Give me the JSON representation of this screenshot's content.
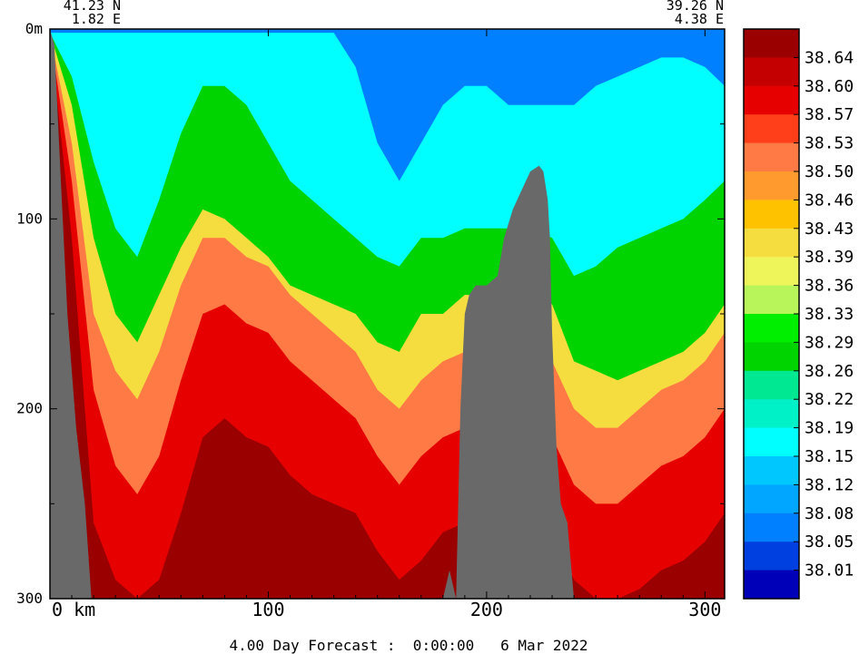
{
  "chart_data": {
    "type": "heatmap",
    "title": "",
    "endpoints": {
      "left": {
        "lat": "41.23 N",
        "lon": "1.82 E"
      },
      "right": {
        "lat": "39.26 N",
        "lon": "4.38 E"
      }
    },
    "xlabel": "",
    "ylabel": "",
    "x_ticks": [
      0,
      100,
      200,
      300
    ],
    "x_tick_labels": [
      "0  km",
      "100",
      "200",
      "300"
    ],
    "xlim": [
      0,
      309
    ],
    "y_ticks": [
      0,
      100,
      200,
      300
    ],
    "y_tick_labels": [
      "0m",
      "100",
      "200",
      "300"
    ],
    "ylim": [
      0,
      300
    ],
    "y_inverted": true,
    "colorbar": {
      "labels": [
        "38.64",
        "38.60",
        "38.57",
        "38.53",
        "38.50",
        "38.46",
        "38.43",
        "38.39",
        "38.36",
        "38.33",
        "38.29",
        "38.26",
        "38.22",
        "38.19",
        "38.15",
        "38.12",
        "38.08",
        "38.05",
        "38.01"
      ],
      "colors": [
        "#9a0000",
        "#c40000",
        "#e60000",
        "#ff3f1a",
        "#ff7a45",
        "#ff9a2e",
        "#ffc200",
        "#f5dd40",
        "#eef55a",
        "#b8f55a",
        "#00ef00",
        "#00d400",
        "#00e892",
        "#00f0c8",
        "#00ffff",
        "#00c8ff",
        "#00a6ff",
        "#0080ff",
        "#0040e0",
        "#0000b8"
      ]
    },
    "grid": false,
    "land_color": "#696969",
    "profiles": {
      "x": [
        0,
        10,
        20,
        30,
        40,
        50,
        60,
        70,
        80,
        90,
        100,
        110,
        120,
        130,
        140,
        150,
        160,
        170,
        180,
        190,
        200,
        210,
        220,
        230,
        240,
        250,
        260,
        270,
        280,
        290,
        300,
        309
      ],
      "iso_38_26": [
        2,
        40,
        110,
        150,
        165,
        140,
        115,
        95,
        100,
        110,
        120,
        135,
        140,
        145,
        150,
        165,
        170,
        150,
        150,
        140,
        140,
        140,
        140,
        145,
        175,
        180,
        185,
        180,
        175,
        170,
        160,
        145
      ],
      "iso_38_43": [
        2,
        60,
        150,
        180,
        195,
        170,
        135,
        110,
        110,
        120,
        125,
        140,
        150,
        160,
        170,
        190,
        200,
        185,
        175,
        170,
        170,
        170,
        170,
        175,
        200,
        210,
        210,
        200,
        190,
        185,
        175,
        160
      ],
      "iso_38_53": [
        2,
        80,
        190,
        230,
        245,
        225,
        185,
        150,
        145,
        155,
        160,
        175,
        185,
        195,
        205,
        225,
        240,
        225,
        215,
        210,
        210,
        210,
        210,
        215,
        240,
        250,
        250,
        240,
        230,
        225,
        215,
        200
      ],
      "iso_38_60": [
        2,
        110,
        260,
        290,
        300,
        290,
        255,
        215,
        205,
        215,
        220,
        235,
        245,
        250,
        255,
        275,
        290,
        280,
        265,
        260,
        260,
        260,
        260,
        265,
        290,
        300,
        300,
        295,
        285,
        280,
        270,
        255
      ],
      "iso_38_12": [
        2,
        25,
        70,
        105,
        120,
        90,
        55,
        30,
        30,
        40,
        60,
        80,
        90,
        100,
        110,
        120,
        125,
        110,
        110,
        105,
        105,
        105,
        105,
        110,
        130,
        125,
        115,
        110,
        105,
        100,
        90,
        80
      ],
      "iso_38_05": [
        2,
        2,
        2,
        2,
        2,
        2,
        2,
        2,
        2,
        2,
        2,
        2,
        2,
        2,
        20,
        60,
        80,
        60,
        40,
        30,
        30,
        40,
        40,
        40,
        40,
        30,
        25,
        20,
        15,
        15,
        20,
        30
      ]
    },
    "terrain": {
      "x": [
        0,
        2,
        5,
        8,
        12,
        16,
        19,
        21,
        22,
        25,
        29,
        30,
        31,
        32,
        33,
        34,
        35
      ],
      "depth": [
        0,
        8,
        80,
        150,
        210,
        250,
        300,
        300,
        300,
        300,
        300,
        300,
        300,
        300,
        300,
        300,
        300
      ]
    },
    "seamount": {
      "x": [
        180,
        183,
        186,
        188,
        190,
        192,
        195,
        200,
        205,
        208,
        212,
        216,
        220,
        224,
        226,
        228,
        229,
        230,
        232,
        234,
        237,
        240,
        242
      ],
      "depth": [
        300,
        285,
        300,
        200,
        150,
        140,
        135,
        135,
        130,
        110,
        95,
        85,
        75,
        72,
        75,
        90,
        110,
        160,
        220,
        250,
        260,
        300,
        300
      ]
    }
  },
  "footer": {
    "forecast": "4.00 Day Forecast :  0:00:00   6 Mar 2022"
  }
}
